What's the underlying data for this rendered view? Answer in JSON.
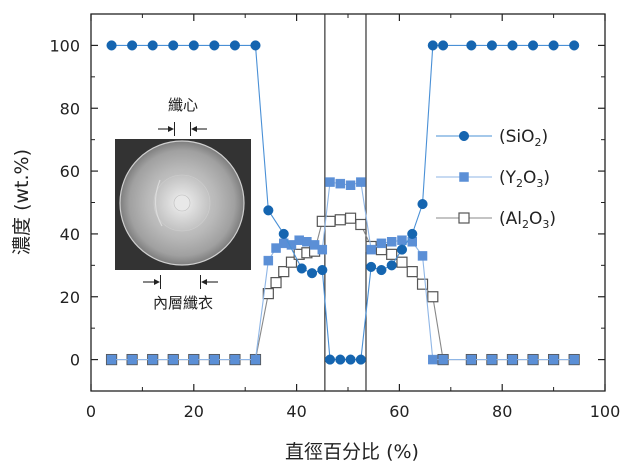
{
  "chart_data": {
    "type": "scatter",
    "xlabel": "直徑百分比 (%)",
    "ylabel": "濃度 (wt.%)",
    "xlim": [
      0,
      100
    ],
    "ylim": [
      -10,
      110
    ],
    "xticks": [
      0,
      20,
      40,
      60,
      80,
      100
    ],
    "yticks": [
      0,
      20,
      40,
      60,
      80,
      100
    ],
    "grid": false,
    "legend_position": "right",
    "boundary_lines_x": [
      45.5,
      53.5
    ],
    "series": [
      {
        "name": "(SiO2)",
        "marker": "filled-circle",
        "color": "#1565b0",
        "line_color": "#4a90d6",
        "x": [
          4,
          8,
          12,
          16,
          20,
          24,
          28,
          32,
          34.5,
          37.5,
          41,
          43,
          45,
          46.5,
          48.5,
          50.5,
          52.5,
          54.5,
          56.5,
          58.5,
          60.5,
          62.5,
          64.5,
          66.5,
          68.5,
          74,
          78,
          82,
          86,
          90,
          94
        ],
        "y": [
          100,
          100,
          100,
          100,
          100,
          100,
          100,
          100,
          47.5,
          40,
          29,
          27.5,
          28.5,
          0,
          0,
          0,
          0,
          29.5,
          28.5,
          30,
          35,
          40,
          49.5,
          100,
          100,
          100,
          100,
          100,
          100,
          100,
          100
        ]
      },
      {
        "name": "(Y2O3)",
        "marker": "filled-square",
        "color": "#5b8fd6",
        "line_color": "#8fb6e6",
        "x": [
          4,
          8,
          12,
          16,
          20,
          24,
          28,
          32,
          34.5,
          36,
          37.5,
          39,
          40.5,
          42,
          43.5,
          45,
          46.5,
          48.5,
          50.5,
          52.5,
          54.5,
          56.5,
          58.5,
          60.5,
          62.5,
          64.5,
          66.5,
          68.5,
          74,
          78,
          82,
          86,
          90,
          94
        ],
        "y": [
          0,
          0,
          0,
          0,
          0,
          0,
          0,
          0,
          31.5,
          35.5,
          37,
          36.5,
          38,
          37.5,
          36.5,
          35,
          56.5,
          56,
          55.5,
          56.5,
          35,
          37,
          37.5,
          38,
          37.5,
          33,
          0,
          0,
          0,
          0,
          0,
          0,
          0,
          0
        ]
      },
      {
        "name": "(Al2O3)",
        "marker": "open-square",
        "color": "#555555",
        "line_color": "#888888",
        "x": [
          4,
          8,
          12,
          16,
          20,
          24,
          28,
          32,
          34.5,
          36,
          37.5,
          39,
          40.5,
          42,
          43.5,
          45,
          46.5,
          48.5,
          50.5,
          52.5,
          54.5,
          56.5,
          58.5,
          60.5,
          62.5,
          64.5,
          66.5,
          68.5,
          74,
          78,
          82,
          86,
          90,
          94
        ],
        "y": [
          0,
          0,
          0,
          0,
          0,
          0,
          0,
          0,
          21,
          24.5,
          28,
          31,
          33.5,
          34,
          34.5,
          44,
          44,
          44.5,
          45,
          43,
          36,
          35,
          33.5,
          31,
          28,
          24,
          20,
          0,
          0,
          0,
          0,
          0,
          0,
          0
        ]
      }
    ],
    "legend": [
      {
        "base": "(SiO",
        "sub": "2",
        "tail": ")"
      },
      {
        "base": "(Y",
        "sub": "2",
        "mid": "O",
        "sub2": "3",
        "tail": ")"
      },
      {
        "base": "(Al",
        "sub": "2",
        "mid": "O",
        "sub2": "3",
        "tail": ")"
      }
    ],
    "inset": {
      "top_label": "纖心",
      "bottom_label": "內層纖衣"
    }
  }
}
